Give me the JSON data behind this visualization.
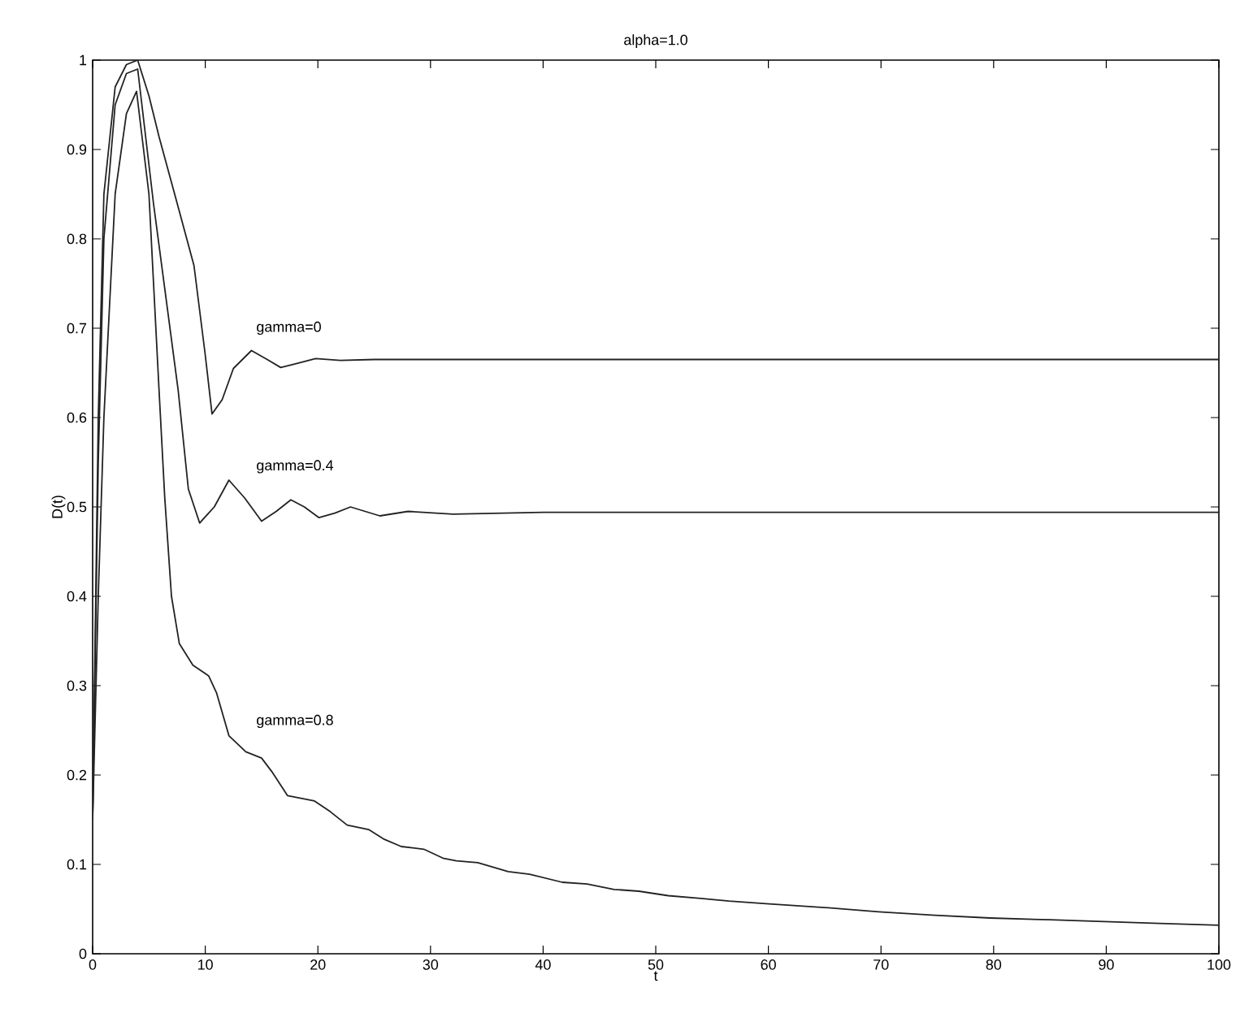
{
  "chart_data": {
    "type": "line",
    "title": "alpha=1.0",
    "xlabel": "t",
    "ylabel": "D(t)",
    "xlim": [
      0,
      100
    ],
    "ylim": [
      0,
      1
    ],
    "xticks": [
      0,
      10,
      20,
      30,
      40,
      50,
      60,
      70,
      80,
      90,
      100
    ],
    "yticks": [
      0,
      0.1,
      0.2,
      0.3,
      0.4,
      0.5,
      0.6,
      0.7,
      0.8,
      0.9,
      1
    ],
    "series": [
      {
        "color": "#222222",
        "x": [
          0,
          0.5,
          1,
          2,
          3,
          4,
          5,
          5.9,
          7.5,
          9,
          10,
          10.6,
          11.5,
          12.5,
          14.1,
          15.5,
          16.7,
          18,
          19.8,
          22,
          25,
          30,
          40,
          60,
          100
        ],
        "values": [
          0.15,
          0.6,
          0.85,
          0.97,
          0.995,
          1.0,
          0.96,
          0.914,
          0.84,
          0.77,
          0.67,
          0.604,
          0.62,
          0.655,
          0.675,
          0.665,
          0.656,
          0.66,
          0.666,
          0.664,
          0.665,
          0.665,
          0.665,
          0.665,
          0.665
        ]
      },
      {
        "color": "#222222",
        "x": [
          0,
          0.5,
          1,
          2,
          3,
          4,
          5.4,
          7.6,
          8.5,
          9.5,
          10.8,
          12.1,
          13.5,
          15,
          16.3,
          17.6,
          18.8,
          20.1,
          21.5,
          22.9,
          24.2,
          25.5,
          28,
          32,
          40,
          60,
          100
        ],
        "values": [
          0.15,
          0.55,
          0.8,
          0.95,
          0.985,
          0.99,
          0.84,
          0.63,
          0.52,
          0.482,
          0.5,
          0.53,
          0.51,
          0.484,
          0.495,
          0.508,
          0.5,
          0.488,
          0.493,
          0.5,
          0.495,
          0.49,
          0.495,
          0.492,
          0.494,
          0.494,
          0.494
        ]
      },
      {
        "color": "#222222",
        "x": [
          0,
          0.5,
          1,
          2,
          3,
          3.9,
          5,
          5.9,
          6.4,
          7.0,
          7.7,
          8.9,
          10.3,
          11,
          12.1,
          13.6,
          15,
          15.9,
          17.3,
          19.7,
          21.1,
          22.6,
          24.5,
          25.9,
          27.4,
          29.4,
          31.1,
          32.3,
          34.2,
          36.9,
          38.8,
          41.7,
          43.9,
          46.3,
          48.5,
          51.1,
          54,
          56.5,
          59.8,
          64.7,
          69.8,
          74.8,
          79.7,
          85,
          89.8,
          94.7,
          100
        ],
        "values": [
          0.15,
          0.4,
          0.6,
          0.85,
          0.94,
          0.965,
          0.85,
          0.63,
          0.511,
          0.4,
          0.347,
          0.323,
          0.311,
          0.292,
          0.244,
          0.226,
          0.219,
          0.204,
          0.177,
          0.171,
          0.159,
          0.144,
          0.139,
          0.128,
          0.12,
          0.117,
          0.107,
          0.104,
          0.102,
          0.092,
          0.089,
          0.08,
          0.078,
          0.072,
          0.07,
          0.065,
          0.062,
          0.059,
          0.056,
          0.052,
          0.047,
          0.043,
          0.04,
          0.038,
          0.036,
          0.034,
          0.032
        ]
      }
    ],
    "annotations": [
      "gamma=0",
      "gamma=0.4",
      "gamma=0.8"
    ]
  }
}
